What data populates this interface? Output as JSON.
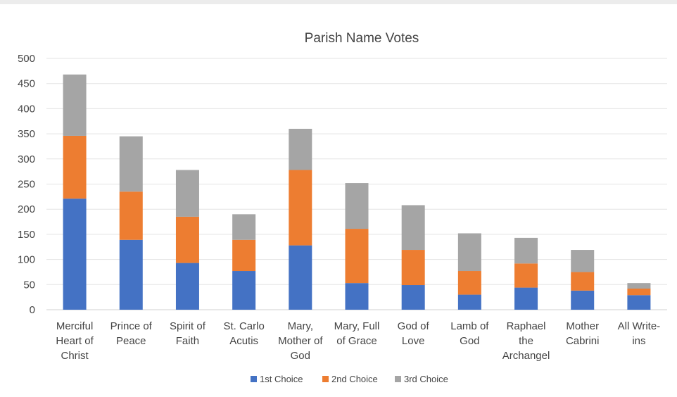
{
  "chart_data": {
    "type": "bar",
    "stacked": true,
    "title": "Parish Name Votes",
    "xlabel": "",
    "ylabel": "",
    "ylim": [
      0,
      500
    ],
    "yticks": [
      0,
      50,
      100,
      150,
      200,
      250,
      300,
      350,
      400,
      450,
      500
    ],
    "grid": true,
    "legend_position": "bottom",
    "categories": [
      [
        "Merciful",
        "Heart of",
        "Christ"
      ],
      [
        "Prince of",
        "Peace"
      ],
      [
        "Spirit of",
        "Faith"
      ],
      [
        "St. Carlo",
        "Acutis"
      ],
      [
        "Mary,",
        "Mother of",
        "God"
      ],
      [
        "Mary, Full",
        "of Grace"
      ],
      [
        "God of",
        "Love"
      ],
      [
        "Lamb of",
        "God"
      ],
      [
        "Raphael",
        "the",
        "Archangel"
      ],
      [
        "Mother",
        "Cabrini"
      ],
      [
        "All Write-",
        "ins"
      ]
    ],
    "series": [
      {
        "name": "1st Choice",
        "color": "#4472C4",
        "values": [
          221,
          139,
          93,
          77,
          128,
          53,
          49,
          30,
          44,
          38,
          29
        ]
      },
      {
        "name": "2nd Choice",
        "color": "#ED7D31",
        "values": [
          125,
          96,
          92,
          62,
          150,
          108,
          70,
          47,
          48,
          37,
          13
        ]
      },
      {
        "name": "3rd Choice",
        "color": "#A5A5A5",
        "values": [
          122,
          110,
          93,
          51,
          82,
          91,
          89,
          75,
          51,
          44,
          11
        ]
      }
    ]
  }
}
